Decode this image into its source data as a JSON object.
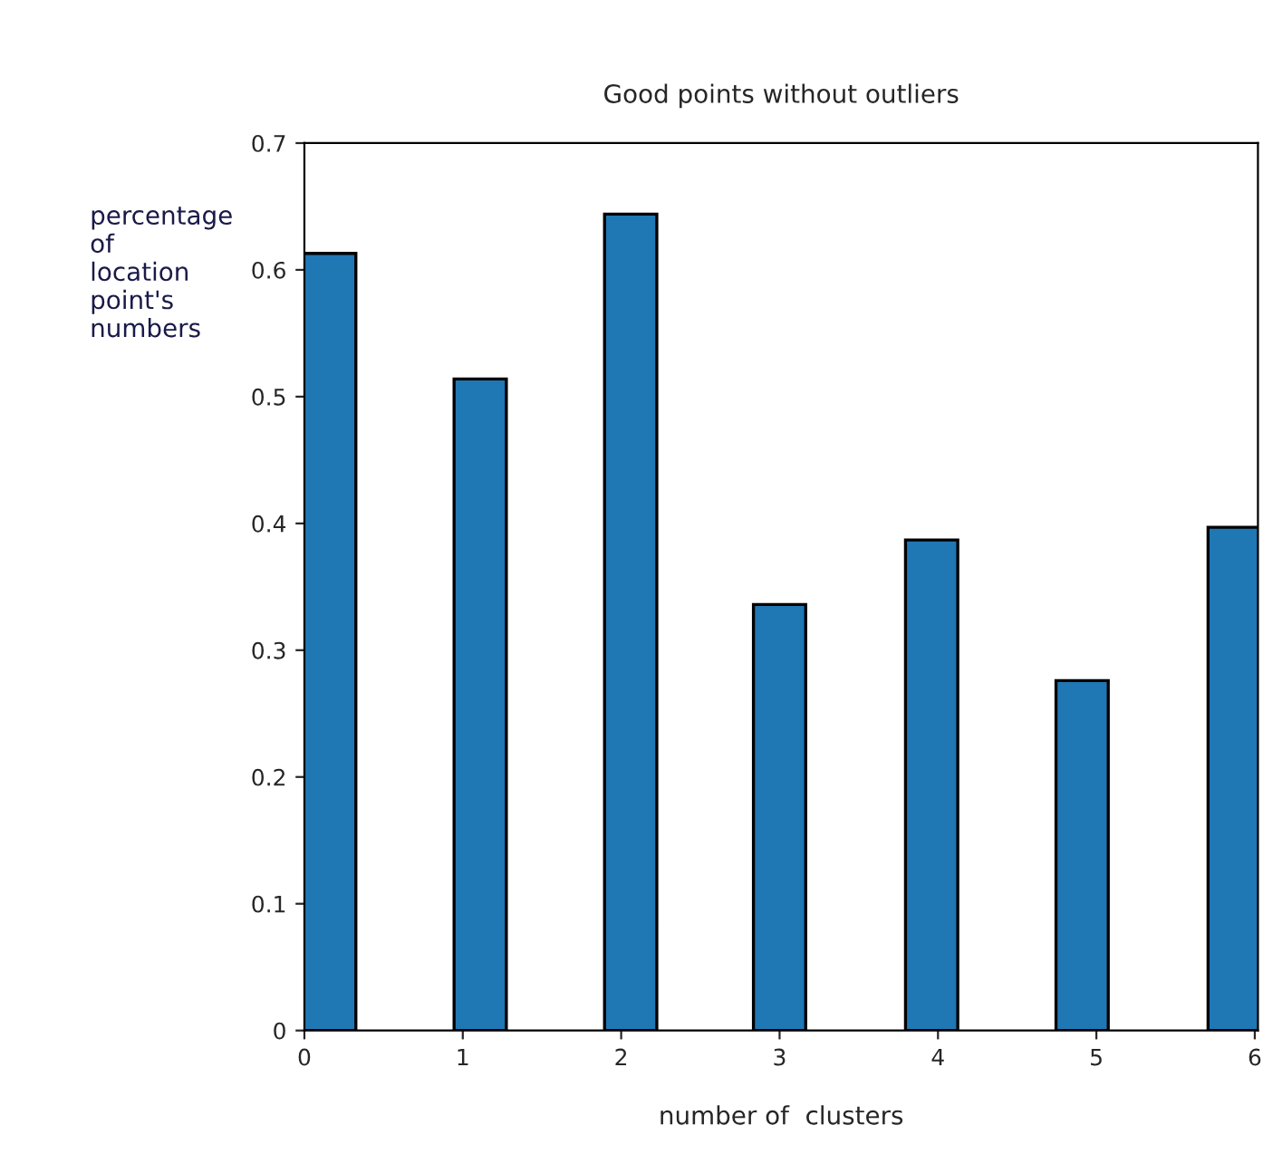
{
  "chart_data": {
    "type": "bar",
    "title": "Good points without outliers",
    "xlabel": "number of  clusters",
    "ylabel": "percentage of location point's numbers",
    "x": [
      0.16,
      1.11,
      2.06,
      3.0,
      3.96,
      4.91,
      5.87
    ],
    "values": [
      0.613,
      0.514,
      0.644,
      0.336,
      0.387,
      0.276,
      0.397
    ],
    "color": "#1f77b4",
    "xlim": [
      0,
      6.02
    ],
    "xticks": [
      0,
      1,
      2,
      3,
      4,
      5,
      6
    ],
    "ylim": [
      0,
      0.7
    ],
    "yticks": [
      0,
      0.1,
      0.2,
      0.3,
      0.4,
      0.5,
      0.6,
      0.7
    ],
    "grid": false,
    "legend": false
  }
}
